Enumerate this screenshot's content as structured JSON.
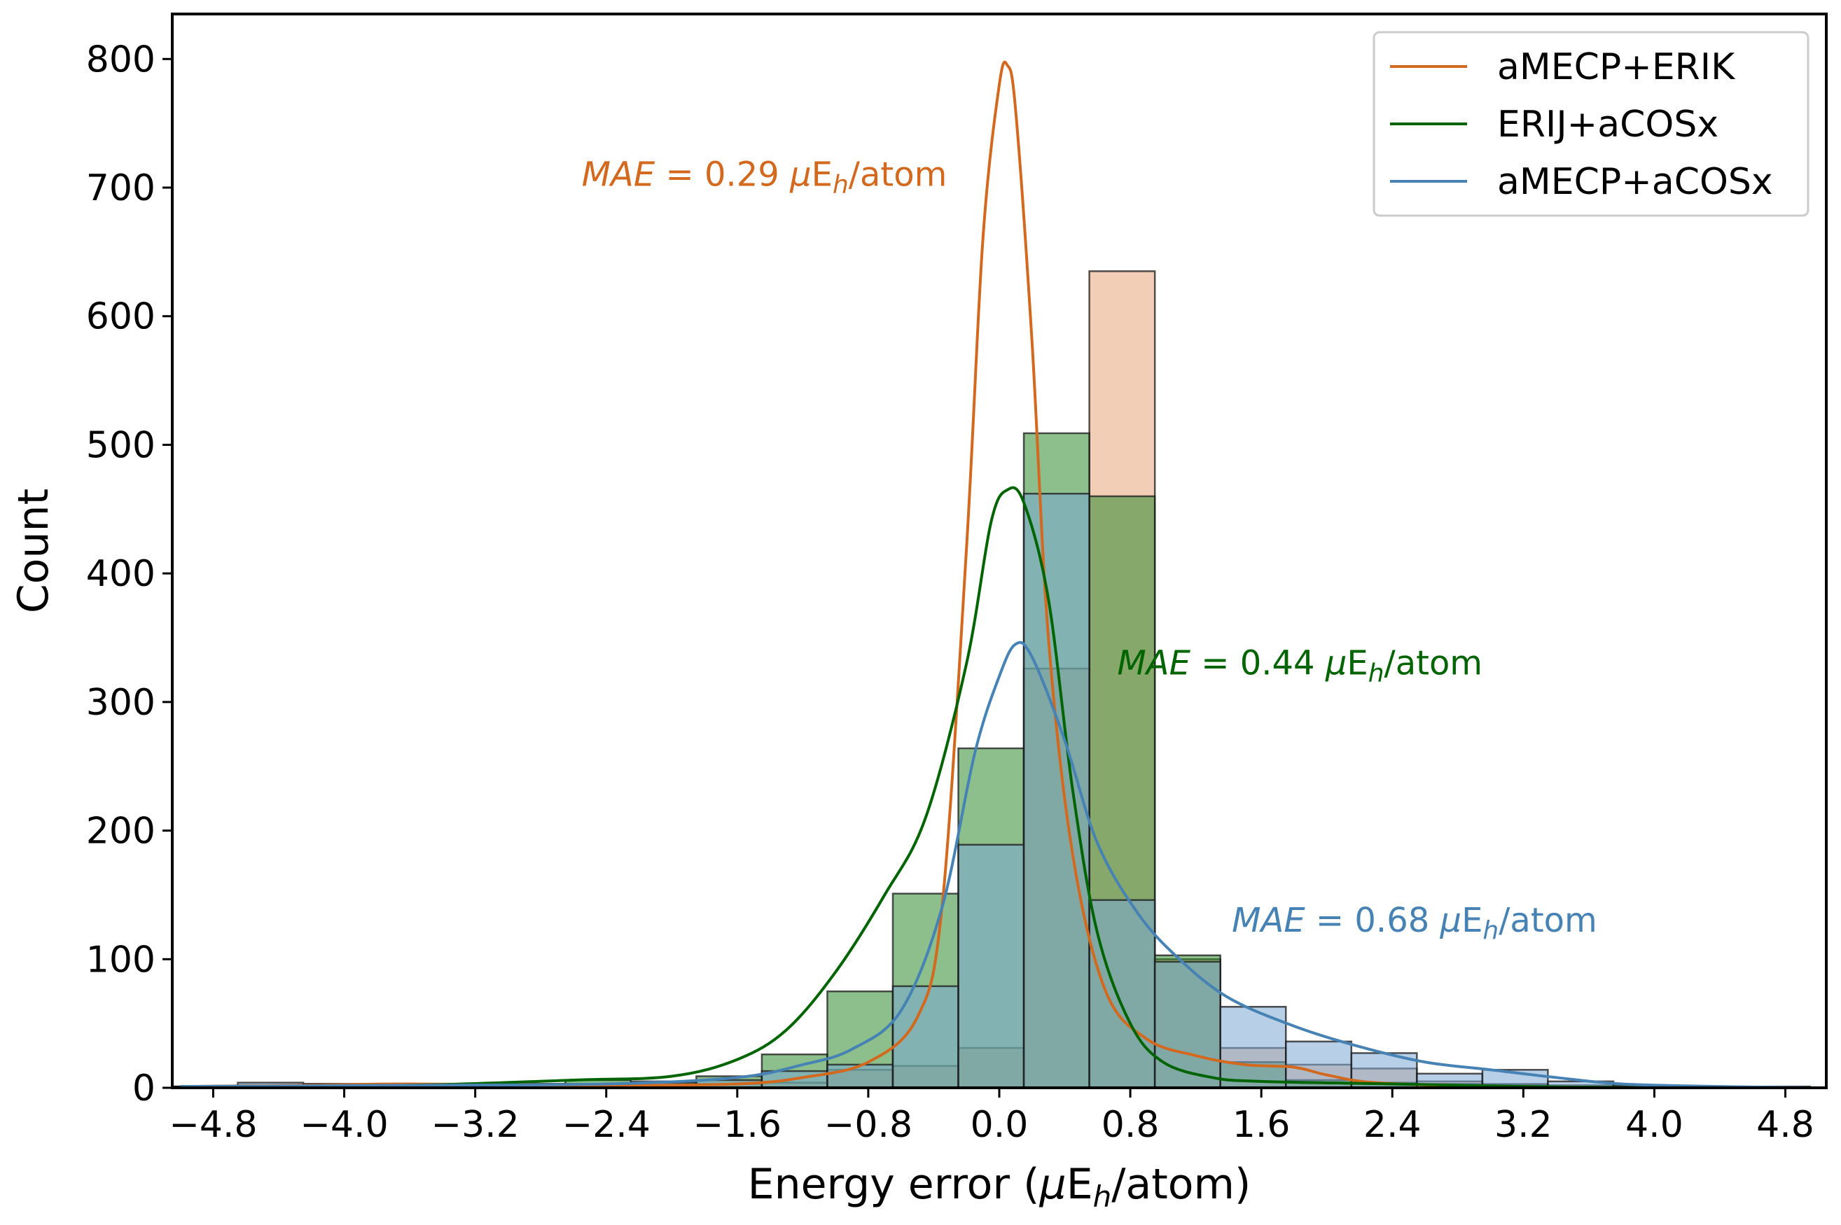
{
  "chart_data": {
    "type": "histogram",
    "xlabel": {
      "main": "Energy error (",
      "mu": "μ",
      "E": "E",
      "sub": "h",
      "tail": "/atom)"
    },
    "ylabel": "Count",
    "xlim": [
      -5.05,
      5.05
    ],
    "ylim": [
      0,
      835
    ],
    "xticks": [
      -4.8,
      -4.0,
      -3.2,
      -2.4,
      -1.6,
      -0.8,
      0.0,
      0.8,
      1.6,
      2.4,
      3.2,
      4.0,
      4.8
    ],
    "xtick_labels": [
      "−4.8",
      "−4.0",
      "−3.2",
      "−2.4",
      "−1.6",
      "−0.8",
      "0.0",
      "0.8",
      "1.6",
      "2.4",
      "3.2",
      "4.0",
      "4.8"
    ],
    "yticks": [
      0,
      100,
      200,
      300,
      400,
      500,
      600,
      700,
      800
    ],
    "ytick_labels": [
      "0",
      "100",
      "200",
      "300",
      "400",
      "500",
      "600",
      "700",
      "800"
    ],
    "legend": {
      "position": "top-right"
    },
    "bin_edges": [
      -5.05,
      -4.65,
      -4.25,
      -3.85,
      -3.45,
      -3.05,
      -2.65,
      -2.25,
      -1.85,
      -1.45,
      -1.05,
      -0.65,
      -0.25,
      0.15,
      0.55,
      0.95,
      1.35,
      1.75,
      2.15,
      2.55,
      2.95,
      3.35,
      3.75,
      4.15,
      4.55,
      4.95
    ],
    "series": [
      {
        "name": "aMECP+ERIK",
        "line_color": "#d2691e",
        "fill_color": "#e8a57a",
        "counts": [
          1,
          2,
          3,
          2,
          2,
          3,
          2,
          2,
          3,
          4,
          14,
          17,
          31,
          326,
          635,
          100,
          31,
          18,
          15,
          5,
          3,
          2,
          1,
          1,
          1
        ],
        "kde": [
          [
            -5.0,
            1
          ],
          [
            -4.2,
            2
          ],
          [
            -3.6,
            3
          ],
          [
            -2.4,
            2
          ],
          [
            -1.6,
            3
          ],
          [
            -1.2,
            8
          ],
          [
            -0.8,
            20
          ],
          [
            -0.5,
            55
          ],
          [
            -0.35,
            140
          ],
          [
            -0.2,
            420
          ],
          [
            -0.1,
            660
          ],
          [
            0.0,
            780
          ],
          [
            0.05,
            795
          ],
          [
            0.1,
            760
          ],
          [
            0.2,
            580
          ],
          [
            0.3,
            350
          ],
          [
            0.45,
            180
          ],
          [
            0.65,
            75
          ],
          [
            0.9,
            38
          ],
          [
            1.2,
            25
          ],
          [
            1.5,
            18
          ],
          [
            1.8,
            16
          ],
          [
            2.0,
            10
          ],
          [
            2.3,
            4
          ],
          [
            3.0,
            1
          ],
          [
            4.0,
            0
          ]
        ],
        "mae_label": {
          "pre": "MAE",
          "mid": " = 0.29 ",
          "mu": "μ",
          "E": "E",
          "sub": "h",
          "post": "/atom"
        }
      },
      {
        "name": "ERIJ+aCOSx",
        "line_color": "#006400",
        "fill_color": "#2e8b2e",
        "counts": [
          1,
          1,
          2,
          1,
          2,
          3,
          6,
          5,
          9,
          26,
          75,
          151,
          264,
          509,
          460,
          103,
          20,
          6,
          4,
          3,
          2,
          1,
          1,
          0,
          0
        ],
        "kde": [
          [
            -5.0,
            1
          ],
          [
            -3.6,
            2
          ],
          [
            -2.6,
            6
          ],
          [
            -2.0,
            9
          ],
          [
            -1.6,
            22
          ],
          [
            -1.3,
            45
          ],
          [
            -1.0,
            90
          ],
          [
            -0.7,
            150
          ],
          [
            -0.45,
            210
          ],
          [
            -0.2,
            330
          ],
          [
            -0.05,
            440
          ],
          [
            0.05,
            465
          ],
          [
            0.15,
            455
          ],
          [
            0.3,
            380
          ],
          [
            0.45,
            230
          ],
          [
            0.6,
            120
          ],
          [
            0.8,
            50
          ],
          [
            1.0,
            20
          ],
          [
            1.3,
            8
          ],
          [
            1.6,
            5
          ],
          [
            2.4,
            3
          ],
          [
            3.2,
            1
          ],
          [
            4.0,
            0
          ]
        ],
        "mae_label": {
          "pre": "MAE",
          "mid": " = 0.44 ",
          "mu": "μ",
          "E": "E",
          "sub": "h",
          "post": "/atom"
        }
      },
      {
        "name": "aMECP+aCOSx",
        "line_color": "#4682b4",
        "fill_color": "#7ba7d4",
        "counts": [
          1,
          4,
          3,
          2,
          2,
          3,
          3,
          4,
          6,
          13,
          18,
          79,
          189,
          462,
          146,
          98,
          63,
          36,
          27,
          11,
          14,
          5,
          2,
          1,
          0
        ],
        "kde": [
          [
            -5.0,
            1
          ],
          [
            -3.6,
            2
          ],
          [
            -2.4,
            3
          ],
          [
            -1.6,
            8
          ],
          [
            -1.2,
            18
          ],
          [
            -0.9,
            30
          ],
          [
            -0.6,
            60
          ],
          [
            -0.35,
            140
          ],
          [
            -0.15,
            260
          ],
          [
            0.0,
            320
          ],
          [
            0.1,
            345
          ],
          [
            0.2,
            335
          ],
          [
            0.4,
            270
          ],
          [
            0.6,
            190
          ],
          [
            0.85,
            135
          ],
          [
            1.1,
            100
          ],
          [
            1.4,
            70
          ],
          [
            1.8,
            48
          ],
          [
            2.2,
            32
          ],
          [
            2.6,
            20
          ],
          [
            3.0,
            14
          ],
          [
            3.4,
            8
          ],
          [
            3.8,
            3
          ],
          [
            4.4,
            1
          ],
          [
            5.0,
            0
          ]
        ],
        "mae_label": {
          "pre": "MAE",
          "mid": " = 0.68 ",
          "mu": "μ",
          "E": "E",
          "sub": "h",
          "post": "/atom"
        }
      }
    ]
  }
}
